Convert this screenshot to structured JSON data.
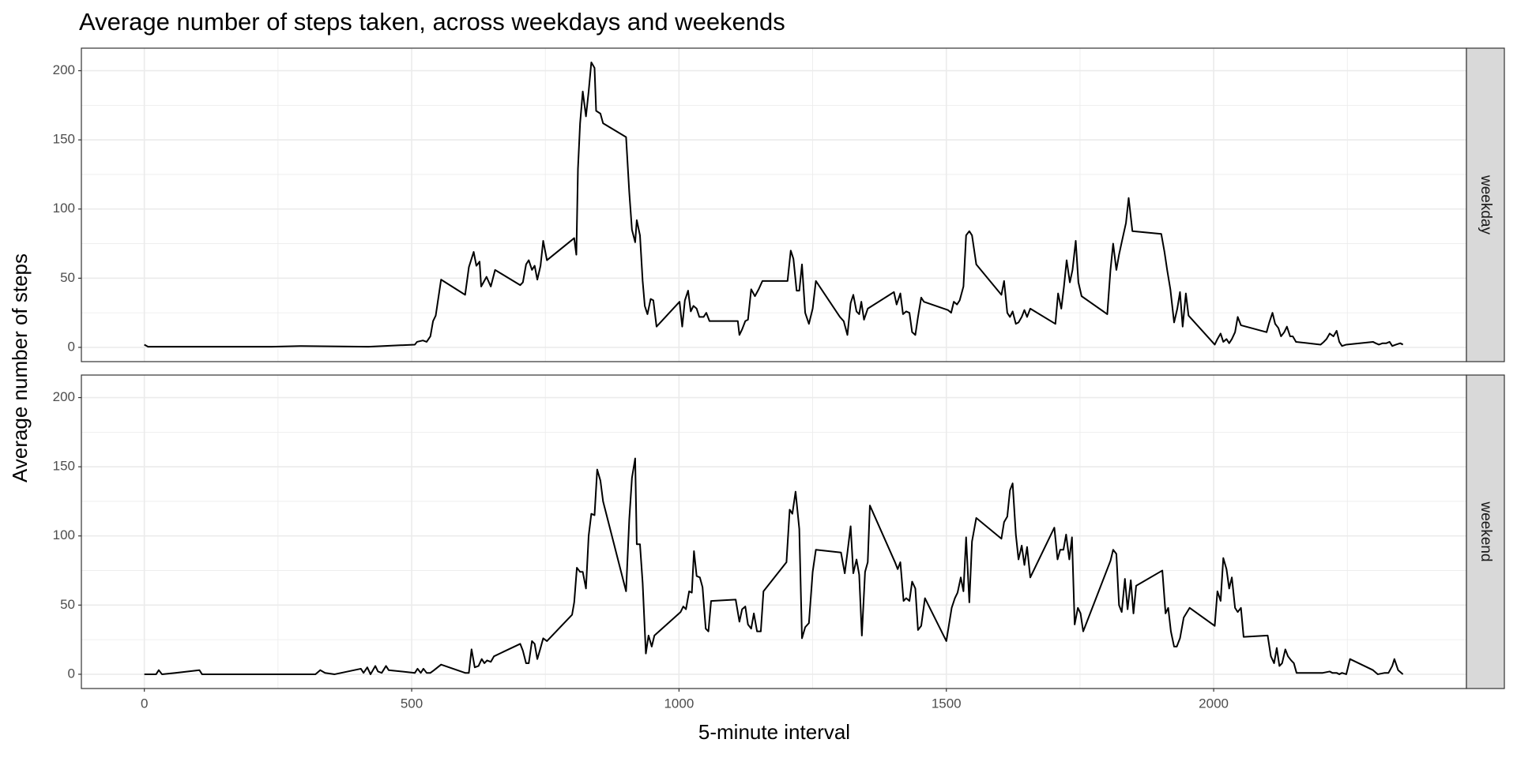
{
  "chart_data": {
    "type": "line",
    "title": "Average number of steps taken, across weekdays and weekends",
    "x_label": "5-minute interval",
    "y_label": "Average number of steps",
    "xlim": [
      -117.75,
      2472.75
    ],
    "xticks": [
      0,
      500,
      1000,
      1500,
      2000
    ],
    "ylim": [
      -10.3,
      216.3
    ],
    "yticks": [
      0,
      50,
      100,
      150,
      200
    ],
    "grid": true,
    "series": [
      {
        "name": "weekday",
        "color": "#000000",
        "x": [
          0,
          7,
          29,
          101,
          155,
          238,
          292,
          419,
          506,
          510,
          521,
          528,
          535,
          540,
          545,
          555,
          600,
          607,
          616,
          621,
          627,
          630,
          640,
          648,
          656,
          703,
          708,
          714,
          719,
          725,
          730,
          735,
          741,
          746,
          753,
          804,
          808,
          811,
          815,
          820,
          826,
          831,
          836,
          842,
          845,
          853,
          858,
          901,
          907,
          912,
          918,
          921,
          927,
          932,
          936,
          941,
          947,
          952,
          958,
          1001,
          1006,
          1011,
          1017,
          1022,
          1027,
          1033,
          1038,
          1046,
          1051,
          1057,
          1106,
          1110,
          1113,
          1118,
          1124,
          1129,
          1135,
          1142,
          1149,
          1156,
          1203,
          1209,
          1214,
          1220,
          1225,
          1230,
          1236,
          1243,
          1250,
          1256,
          1301,
          1308,
          1315,
          1321,
          1326,
          1332,
          1337,
          1341,
          1346,
          1353,
          1402,
          1407,
          1414,
          1419,
          1425,
          1431,
          1436,
          1442,
          1447,
          1453,
          1458,
          1503,
          1509,
          1514,
          1520,
          1525,
          1532,
          1537,
          1543,
          1548,
          1556,
          1603,
          1608,
          1614,
          1619,
          1624,
          1630,
          1635,
          1641,
          1646,
          1651,
          1657,
          1704,
          1709,
          1715,
          1720,
          1725,
          1731,
          1736,
          1742,
          1747,
          1753,
          1801,
          1807,
          1812,
          1818,
          1823,
          1828,
          1836,
          1841,
          1848,
          1902,
          1908,
          1913,
          1919,
          1926,
          1932,
          1937,
          1942,
          1948,
          1953,
          2002,
          2007,
          2013,
          2018,
          2024,
          2029,
          2034,
          2040,
          2045,
          2051,
          2099,
          2104,
          2110,
          2115,
          2121,
          2126,
          2132,
          2137,
          2143,
          2148,
          2154,
          2200,
          2206,
          2211,
          2217,
          2224,
          2230,
          2235,
          2240,
          2248,
          2298,
          2303,
          2309,
          2316,
          2323,
          2329,
          2334,
          2341,
          2349,
          2354
        ],
        "values": [
          2,
          0.5,
          0.5,
          0.5,
          0.5,
          0.5,
          1,
          0.5,
          2,
          4,
          5,
          4,
          8,
          19,
          23,
          49,
          38,
          58,
          69,
          59,
          62,
          44,
          51,
          44,
          56,
          45,
          47,
          60,
          63,
          56,
          59,
          49,
          59,
          77,
          63,
          79,
          67,
          129,
          162,
          185,
          167,
          185,
          206,
          202,
          171,
          169,
          162,
          152,
          112,
          85,
          76,
          92,
          81,
          48,
          30,
          24,
          35,
          34,
          15,
          33,
          15,
          34,
          41,
          26,
          30,
          28,
          22,
          22,
          25,
          19,
          19,
          19,
          9,
          13,
          19,
          20,
          42,
          37,
          42,
          48,
          48,
          70,
          64,
          41,
          41,
          60,
          25,
          17,
          28,
          48,
          22,
          19,
          9,
          32,
          38,
          26,
          24,
          33,
          20,
          28,
          40,
          31,
          39,
          24,
          26,
          25,
          11,
          9,
          22,
          36,
          33,
          27,
          25,
          33,
          31,
          34,
          44,
          81,
          84,
          81,
          60,
          38,
          48,
          25,
          22,
          26,
          17,
          18,
          22,
          27,
          22,
          28,
          17,
          39,
          28,
          44,
          63,
          47,
          56,
          77,
          47,
          37,
          24,
          56,
          75,
          56,
          67,
          76,
          90,
          108,
          84,
          82,
          69,
          56,
          42,
          18,
          28,
          40,
          15,
          39,
          23,
          2,
          6,
          10,
          4,
          6,
          3,
          6,
          11,
          22,
          16,
          11,
          18,
          25,
          17,
          14,
          8,
          11,
          15,
          8,
          8,
          4,
          2,
          4,
          6,
          10,
          8,
          12,
          4,
          1,
          2,
          4,
          3,
          2,
          3,
          3,
          4,
          1,
          2,
          3,
          2
        ]
      },
      {
        "name": "weekend",
        "color": "#000000",
        "x": [
          0,
          22,
          27,
          33,
          58,
          103,
          108,
          200,
          320,
          329,
          338,
          356,
          405,
          410,
          417,
          423,
          432,
          437,
          444,
          452,
          457,
          506,
          511,
          517,
          522,
          528,
          535,
          542,
          555,
          600,
          607,
          612,
          618,
          625,
          631,
          636,
          641,
          648,
          654,
          703,
          708,
          714,
          719,
          725,
          730,
          735,
          741,
          746,
          753,
          800,
          804,
          809,
          815,
          820,
          826,
          831,
          836,
          842,
          847,
          853,
          858,
          901,
          907,
          912,
          918,
          921,
          927,
          932,
          938,
          943,
          949,
          954,
          1003,
          1008,
          1013,
          1019,
          1024,
          1028,
          1033,
          1039,
          1044,
          1050,
          1055,
          1060,
          1106,
          1113,
          1118,
          1124,
          1129,
          1135,
          1140,
          1146,
          1153,
          1158,
          1201,
          1207,
          1212,
          1218,
          1225,
          1230,
          1236,
          1243,
          1250,
          1256,
          1303,
          1310,
          1315,
          1321,
          1326,
          1332,
          1337,
          1342,
          1348,
          1353,
          1357,
          1404,
          1409,
          1414,
          1420,
          1425,
          1431,
          1436,
          1442,
          1447,
          1453,
          1460,
          1500,
          1510,
          1516,
          1521,
          1527,
          1532,
          1537,
          1543,
          1548,
          1556,
          1603,
          1608,
          1614,
          1619,
          1624,
          1630,
          1635,
          1641,
          1646,
          1651,
          1657,
          1702,
          1708,
          1713,
          1719,
          1724,
          1730,
          1735,
          1740,
          1746,
          1751,
          1756,
          1807,
          1812,
          1818,
          1823,
          1828,
          1834,
          1839,
          1845,
          1850,
          1855,
          1904,
          1910,
          1915,
          1920,
          1926,
          1931,
          1937,
          1944,
          1955,
          2002,
          2007,
          2013,
          2018,
          2024,
          2029,
          2034,
          2040,
          2045,
          2051,
          2056,
          2101,
          2107,
          2113,
          2118,
          2123,
          2128,
          2134,
          2139,
          2145,
          2150,
          2155,
          2204,
          2217,
          2222,
          2230,
          2235,
          2240,
          2248,
          2255,
          2298,
          2307,
          2320,
          2327,
          2334,
          2338,
          2345,
          2354
        ],
        "values": [
          0,
          0,
          3,
          0,
          1,
          3,
          0,
          0,
          0,
          3,
          1,
          0,
          4,
          1,
          5,
          0,
          6,
          2,
          1,
          6,
          3,
          1,
          4,
          1,
          4,
          1,
          1,
          3,
          7,
          1,
          1,
          18,
          5,
          6,
          11,
          8,
          10,
          9,
          13,
          22,
          17,
          8,
          8,
          24,
          22,
          11,
          19,
          26,
          24,
          43,
          52,
          77,
          74,
          74,
          62,
          100,
          116,
          115,
          148,
          140,
          125,
          60,
          112,
          142,
          156,
          94,
          94,
          66,
          15,
          28,
          20,
          28,
          45,
          49,
          47,
          60,
          59,
          89,
          71,
          70,
          63,
          33,
          31,
          53,
          54,
          38,
          47,
          49,
          36,
          33,
          44,
          31,
          31,
          60,
          81,
          119,
          116,
          132,
          105,
          26,
          34,
          37,
          74,
          90,
          88,
          73,
          88,
          107,
          73,
          83,
          72,
          28,
          74,
          81,
          122,
          81,
          76,
          81,
          53,
          55,
          53,
          67,
          62,
          32,
          35,
          55,
          24,
          48,
          55,
          59,
          70,
          60,
          99,
          52,
          96,
          113,
          98,
          110,
          114,
          133,
          138,
          101,
          83,
          93,
          79,
          92,
          70,
          106,
          83,
          90,
          90,
          101,
          83,
          99,
          36,
          48,
          44,
          31,
          82,
          90,
          87,
          50,
          45,
          69,
          47,
          68,
          44,
          64,
          75,
          44,
          48,
          31,
          20,
          20,
          26,
          41,
          48,
          35,
          60,
          53,
          84,
          76,
          62,
          70,
          48,
          45,
          48,
          27,
          28,
          13,
          8,
          19,
          6,
          8,
          18,
          13,
          10,
          8,
          1,
          1,
          2,
          1,
          1,
          0,
          1,
          0,
          11,
          3,
          0,
          1,
          1,
          6,
          11,
          3,
          0
        ]
      }
    ]
  }
}
